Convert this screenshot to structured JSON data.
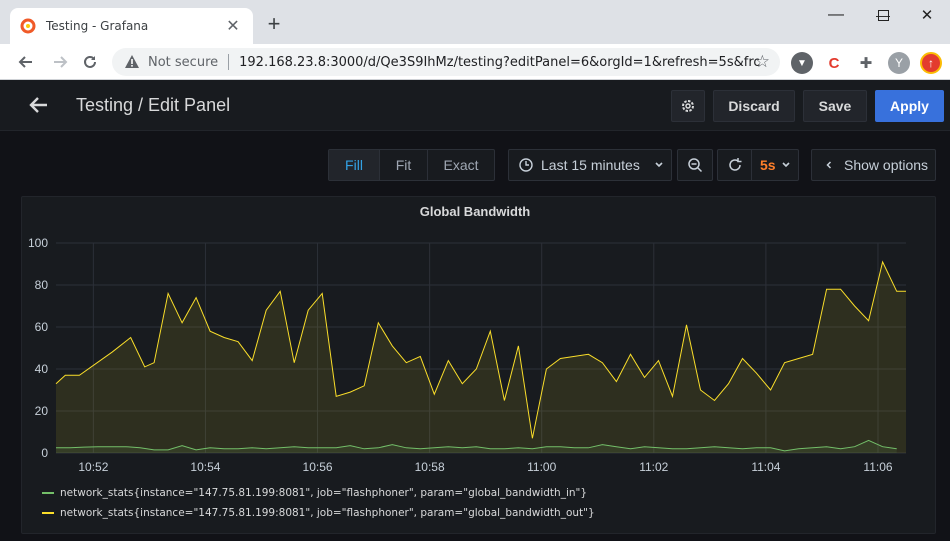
{
  "browser": {
    "tab_title": "Testing - Grafana",
    "new_tab": "+",
    "security_label": "Not secure",
    "url": "192.168.23.8:3000/d/Qe3S9IhMz/testing?editPanel=6&orgId=1&refresh=5s&fro...",
    "profile_initial": "Y"
  },
  "header": {
    "title": "Testing / Edit Panel",
    "discard": "Discard",
    "save": "Save",
    "apply": "Apply"
  },
  "toolbar": {
    "view_modes": [
      "Fill",
      "Fit",
      "Exact"
    ],
    "active_mode": "Fill",
    "time_range": "Last 15 minutes",
    "refresh_interval": "5s",
    "show_options": "Show options"
  },
  "colors": {
    "series_in": "#73bf69",
    "series_out": "#fade2a",
    "accent": "#3871dc",
    "refresh": "#ff7f2a"
  },
  "chart_data": {
    "type": "area",
    "title": "Global Bandwidth",
    "ylim": [
      0,
      100
    ],
    "yticks": [
      0,
      20,
      40,
      60,
      80,
      100
    ],
    "xlim": [
      "10:51:20",
      "11:06:30"
    ],
    "xticks": [
      "10:52",
      "10:54",
      "10:56",
      "10:58",
      "11:00",
      "11:02",
      "11:04",
      "11:06"
    ],
    "grid": true,
    "legend_position": "bottom-left",
    "series": [
      {
        "name": "network_stats{instance=\"147.75.81.199:8081\", job=\"flashphoner\", param=\"global_bandwidth_in\"}",
        "color": "#73bf69",
        "x": [
          "10:51:20",
          "10:51:35",
          "10:51:50",
          "10:52:05",
          "10:52:20",
          "10:52:35",
          "10:52:50",
          "10:53:05",
          "10:53:20",
          "10:53:35",
          "10:53:50",
          "10:54:05",
          "10:54:20",
          "10:54:35",
          "10:54:50",
          "10:55:05",
          "10:55:20",
          "10:55:35",
          "10:55:50",
          "10:56:05",
          "10:56:20",
          "10:56:35",
          "10:56:50",
          "10:57:05",
          "10:57:20",
          "10:57:35",
          "10:57:50",
          "10:58:05",
          "10:58:20",
          "10:58:35",
          "10:58:50",
          "10:59:05",
          "10:59:20",
          "10:59:35",
          "10:59:50",
          "11:00:05",
          "11:00:20",
          "11:00:35",
          "11:00:50",
          "11:01:05",
          "11:01:20",
          "11:01:35",
          "11:01:50",
          "11:02:05",
          "11:02:20",
          "11:02:35",
          "11:02:50",
          "11:03:05",
          "11:03:20",
          "11:03:35",
          "11:03:50",
          "11:04:05",
          "11:04:20",
          "11:04:35",
          "11:04:50",
          "11:05:05",
          "11:05:20",
          "11:05:35",
          "11:05:50",
          "11:06:05",
          "11:06:20"
        ],
        "values": [
          2.5,
          2.5,
          2.8,
          3,
          3,
          3,
          2.5,
          1.5,
          1.5,
          3.5,
          1.5,
          2.5,
          2,
          2,
          2.5,
          2,
          2.5,
          3,
          2.5,
          2.5,
          2.5,
          3.5,
          2,
          2.5,
          4,
          2.5,
          2,
          2.5,
          3,
          2.5,
          3,
          2,
          2,
          2.5,
          2,
          3,
          3,
          2.5,
          2.5,
          4,
          3,
          2,
          3,
          2.5,
          2,
          2,
          2.5,
          3,
          2.5,
          2,
          2.5,
          2.5,
          1,
          2,
          2.5,
          3,
          2,
          3,
          6,
          3,
          2
        ]
      },
      {
        "name": "network_stats{instance=\"147.75.81.199:8081\", job=\"flashphoner\", param=\"global_bandwidth_out\"}",
        "color": "#fade2a",
        "x": [
          "10:51:20",
          "10:51:30",
          "10:51:45",
          "10:52:20",
          "10:52:40",
          "10:52:55",
          "10:53:05",
          "10:53:20",
          "10:53:35",
          "10:53:50",
          "10:54:05",
          "10:54:20",
          "10:54:35",
          "10:54:50",
          "10:55:05",
          "10:55:20",
          "10:55:35",
          "10:55:50",
          "10:56:05",
          "10:56:20",
          "10:56:35",
          "10:56:50",
          "10:57:05",
          "10:57:20",
          "10:57:35",
          "10:57:50",
          "10:58:05",
          "10:58:20",
          "10:58:35",
          "10:58:50",
          "10:59:05",
          "10:59:20",
          "10:59:35",
          "10:59:50",
          "11:00:05",
          "11:00:20",
          "11:00:35",
          "11:00:50",
          "11:01:05",
          "11:01:20",
          "11:01:35",
          "11:01:50",
          "11:02:05",
          "11:02:20",
          "11:02:35",
          "11:02:50",
          "11:03:05",
          "11:03:20",
          "11:03:35",
          "11:03:50",
          "11:04:05",
          "11:04:20",
          "11:04:35",
          "11:04:50",
          "11:05:05",
          "11:05:20",
          "11:05:35",
          "11:05:50",
          "11:06:05",
          "11:06:20",
          "11:06:30"
        ],
        "values": [
          33,
          37,
          37,
          48,
          55,
          41,
          43,
          76,
          62,
          74,
          58,
          55,
          53,
          44,
          68,
          77,
          43,
          68,
          76,
          27,
          29,
          32,
          62,
          51,
          43,
          46,
          28,
          44,
          33,
          40,
          58,
          25,
          51,
          7,
          40,
          45,
          46,
          47,
          43,
          34,
          47,
          36,
          44,
          27,
          61,
          30,
          25,
          33,
          45,
          38,
          30,
          43,
          45,
          47,
          78,
          78,
          70,
          63,
          91,
          77,
          77
        ]
      }
    ]
  }
}
